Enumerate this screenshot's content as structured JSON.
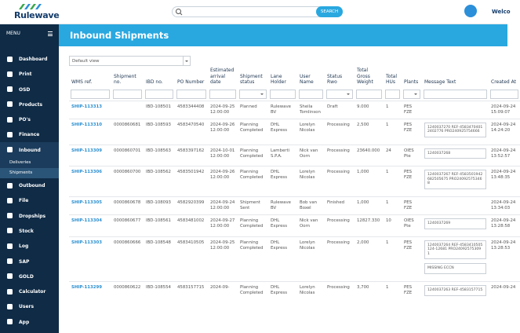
{
  "header": {
    "logo": "Rulewave",
    "search_button": "SEARCH",
    "welcome": "Welco"
  },
  "sidebar": {
    "menu": "MENU",
    "items": [
      {
        "label": "Dashboard"
      },
      {
        "label": "Print"
      },
      {
        "label": "OSD"
      },
      {
        "label": "Products"
      },
      {
        "label": "PO's"
      },
      {
        "label": "Finance"
      },
      {
        "label": "Inbound",
        "active": true,
        "sub": [
          {
            "label": "Deliveries"
          },
          {
            "label": "Shipments",
            "active": true
          }
        ]
      },
      {
        "label": "Outbound"
      },
      {
        "label": "File"
      },
      {
        "label": "Dropships"
      },
      {
        "label": "Stock"
      },
      {
        "label": "Log"
      },
      {
        "label": "SAP"
      },
      {
        "label": "GOLD"
      },
      {
        "label": "Calculator"
      },
      {
        "label": "Users"
      },
      {
        "label": "App"
      }
    ]
  },
  "page": {
    "title": "Inbound Shipments",
    "view_select": "Default view",
    "columns": [
      {
        "label": "WMS ref."
      },
      {
        "label": "Shipment no."
      },
      {
        "label": "IBD no."
      },
      {
        "label": "PO Number"
      },
      {
        "label": "Estimated arrival date"
      },
      {
        "label": "Shipment status",
        "filter": "select"
      },
      {
        "label": "Lane Holder"
      },
      {
        "label": "User Name"
      },
      {
        "label": "Status Rwo",
        "filter": "select"
      },
      {
        "label": "Total Gross Weight"
      },
      {
        "label": "Total HUs"
      },
      {
        "label": "Plants",
        "filter": "select"
      },
      {
        "label": "Message Text"
      },
      {
        "label": "Created At"
      }
    ],
    "rows": [
      [
        "SHIP-113313",
        null,
        "IBD-108501",
        "4583344408",
        "2024-09-25 12:00:00",
        "Planned",
        "Rulewave BV",
        "Sheila Tomlinson",
        "Draft",
        "9.000",
        "1",
        "PES FZE",
        null,
        "2024-09-24 15:09:07"
      ],
      [
        "SHIP-113310",
        "0000860681",
        "IBD-108593",
        "4583470540",
        "2024-09-26 12:00:00",
        "Planning Completed",
        "DHL Express",
        "Lorelyn Nicolas",
        "Processing",
        "2,500",
        "1",
        "PES FZE",
        [
          "1240037270 REF-45834704012402776 PRO240925754666"
        ],
        "2024-09-24 14:24:20"
      ],
      [
        "SHIP-113309",
        "0000860701",
        "IBD-108563",
        "4583397162",
        "2024-10-01 12:00:00",
        "Planning Completed",
        "Lamberti S.P.A.",
        "Nick van Oorn",
        "Processing",
        "23640.000",
        "24",
        "OIES Pte",
        [
          "1240037268"
        ],
        "2024-09-24 13:52:57"
      ],
      [
        "SHIP-113306",
        "0000860700",
        "IBD-108562",
        "4583501942",
        "2024-09-26 12:00:00",
        "Planning Completed",
        "DHL Express",
        "Lorelyn Nicolas",
        "Processing",
        "1,000",
        "1",
        "PES FZE",
        [
          "1240037267 REF-4583501942682505675 PRO240925753468"
        ],
        "2024-09-24 13:48:35"
      ],
      [
        "SHIP-113305",
        "0000860678",
        "IBD-108093",
        "4582920399",
        "2024-09-24 12:00:00",
        "Shipment Sent",
        "Rulewave BV",
        "Bob van Boxel",
        "Finished",
        "1,000",
        "1",
        "PES FZE",
        null,
        "2024-09-24 13:34:03"
      ],
      [
        "SHIP-113304",
        "0000860677",
        "IBD-108561",
        "4583481002",
        "2024-09-27 12:00:00",
        "Planning Completed",
        "DHL Express",
        "Nick van Oorn",
        "Processing",
        "12827.330",
        "10",
        "OIES Pte",
        [
          "1240037269"
        ],
        "2024-09-24 13:28:58"
      ],
      [
        "SHIP-113303",
        "0000860666",
        "IBD-108548",
        "4583410505",
        "2024-09-25 12:00:00",
        "Planning Completed",
        "DHL Express",
        "Lorelyn Nicolas",
        "Processing",
        "2,000",
        "1",
        "PES FZE",
        [
          "1240037264 REF-4583410505124-12681 PRO240925753091",
          "MISSING ECCN"
        ],
        "2024-09-24 13:28:53"
      ],
      [
        "SHIP-113299",
        "0000860622",
        "IBD-108554",
        "4583157715",
        "2024-09-",
        "Planning Completed",
        "DHL Express",
        "Lorelyn Nicolas",
        "Processing",
        "3,700",
        "1",
        "PES FZE",
        [
          "1240037263 REF-4583157715"
        ],
        "2024-09-24"
      ]
    ]
  }
}
